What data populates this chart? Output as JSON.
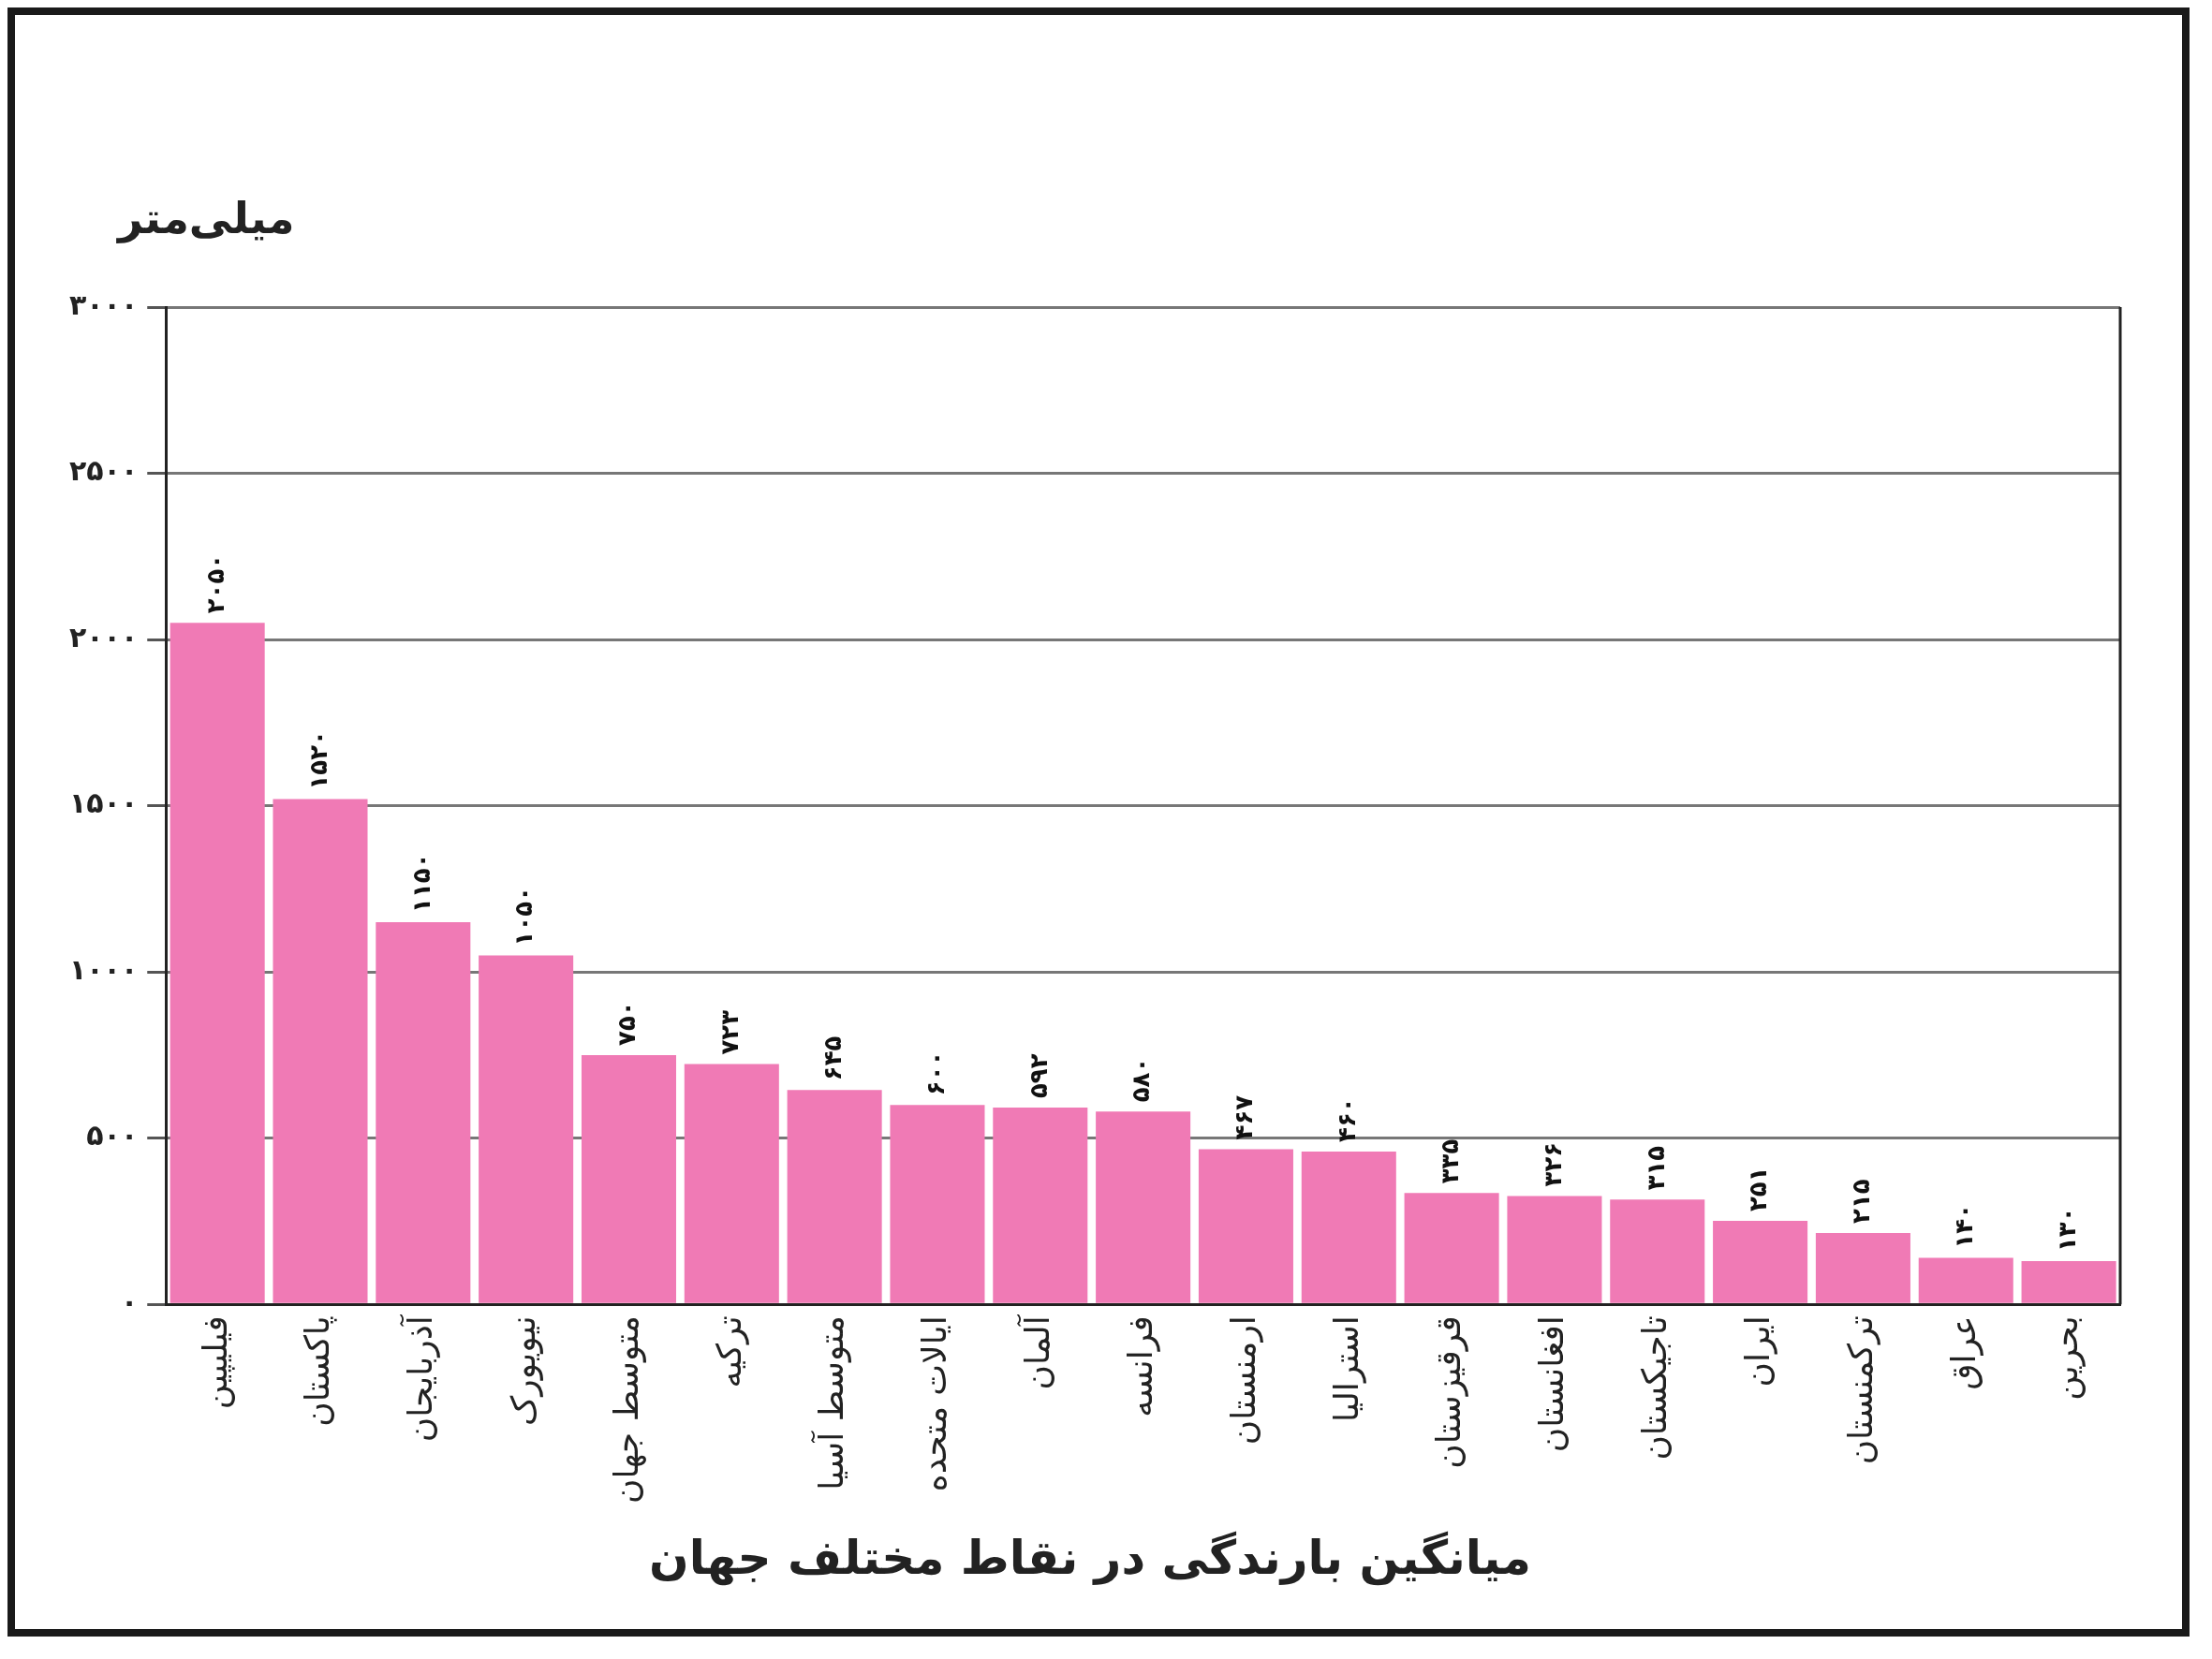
{
  "chart_data": {
    "type": "bar",
    "title": "میانگین بارندگی در نقاط مختلف جهان",
    "ylabel": "میلی‌متر",
    "categories": [
      "فیلیپین",
      "پاکستان",
      "آذربایجان",
      "نیویورک",
      "متوسط جهان",
      "ترکیه",
      "متوسط آسیا",
      "ایالات متحده",
      "آلمان",
      "فرانسه",
      "ارمنستان",
      "استرالیا",
      "قرقیزستان",
      "افغانستان",
      "تاجیکستان",
      "ایران",
      "ترکمنستان",
      "عراق",
      "بحرین"
    ],
    "values": [
      2050,
      1520,
      1150,
      1050,
      750,
      723,
      645,
      600,
      592,
      580,
      467,
      460,
      335,
      326,
      315,
      251,
      215,
      140,
      130
    ],
    "value_labels": [
      "۲۰۵۰",
      "۱۵۲۰",
      "۱۱۵۰",
      "۱۰۵۰",
      "۷۵۰",
      "۷۲۳",
      "۶۴۵",
      "۶۰۰",
      "۵۹۲",
      "۵۸۰",
      "۴۶۷",
      "۴۶۰",
      "۳۳۵",
      "۳۲۶",
      "۳۱۵",
      "۲۵۱",
      "۲۱۵",
      "۱۴۰",
      "۱۳۰"
    ],
    "color": "#f07ab5",
    "ylim": [
      0,
      3000
    ],
    "yticks": [
      {
        "value": 0,
        "label": "۰"
      },
      {
        "value": 500,
        "label": "۵۰۰"
      },
      {
        "value": 1000,
        "label": "۱۰۰۰"
      },
      {
        "value": 1500,
        "label": "۱۵۰۰"
      },
      {
        "value": 2000,
        "label": "۲۰۰۰"
      },
      {
        "value": 2500,
        "label": "۲۵۰۰"
      },
      {
        "value": 3000,
        "label": "۳۰۰۰"
      }
    ],
    "grid": "y",
    "legend": false
  }
}
